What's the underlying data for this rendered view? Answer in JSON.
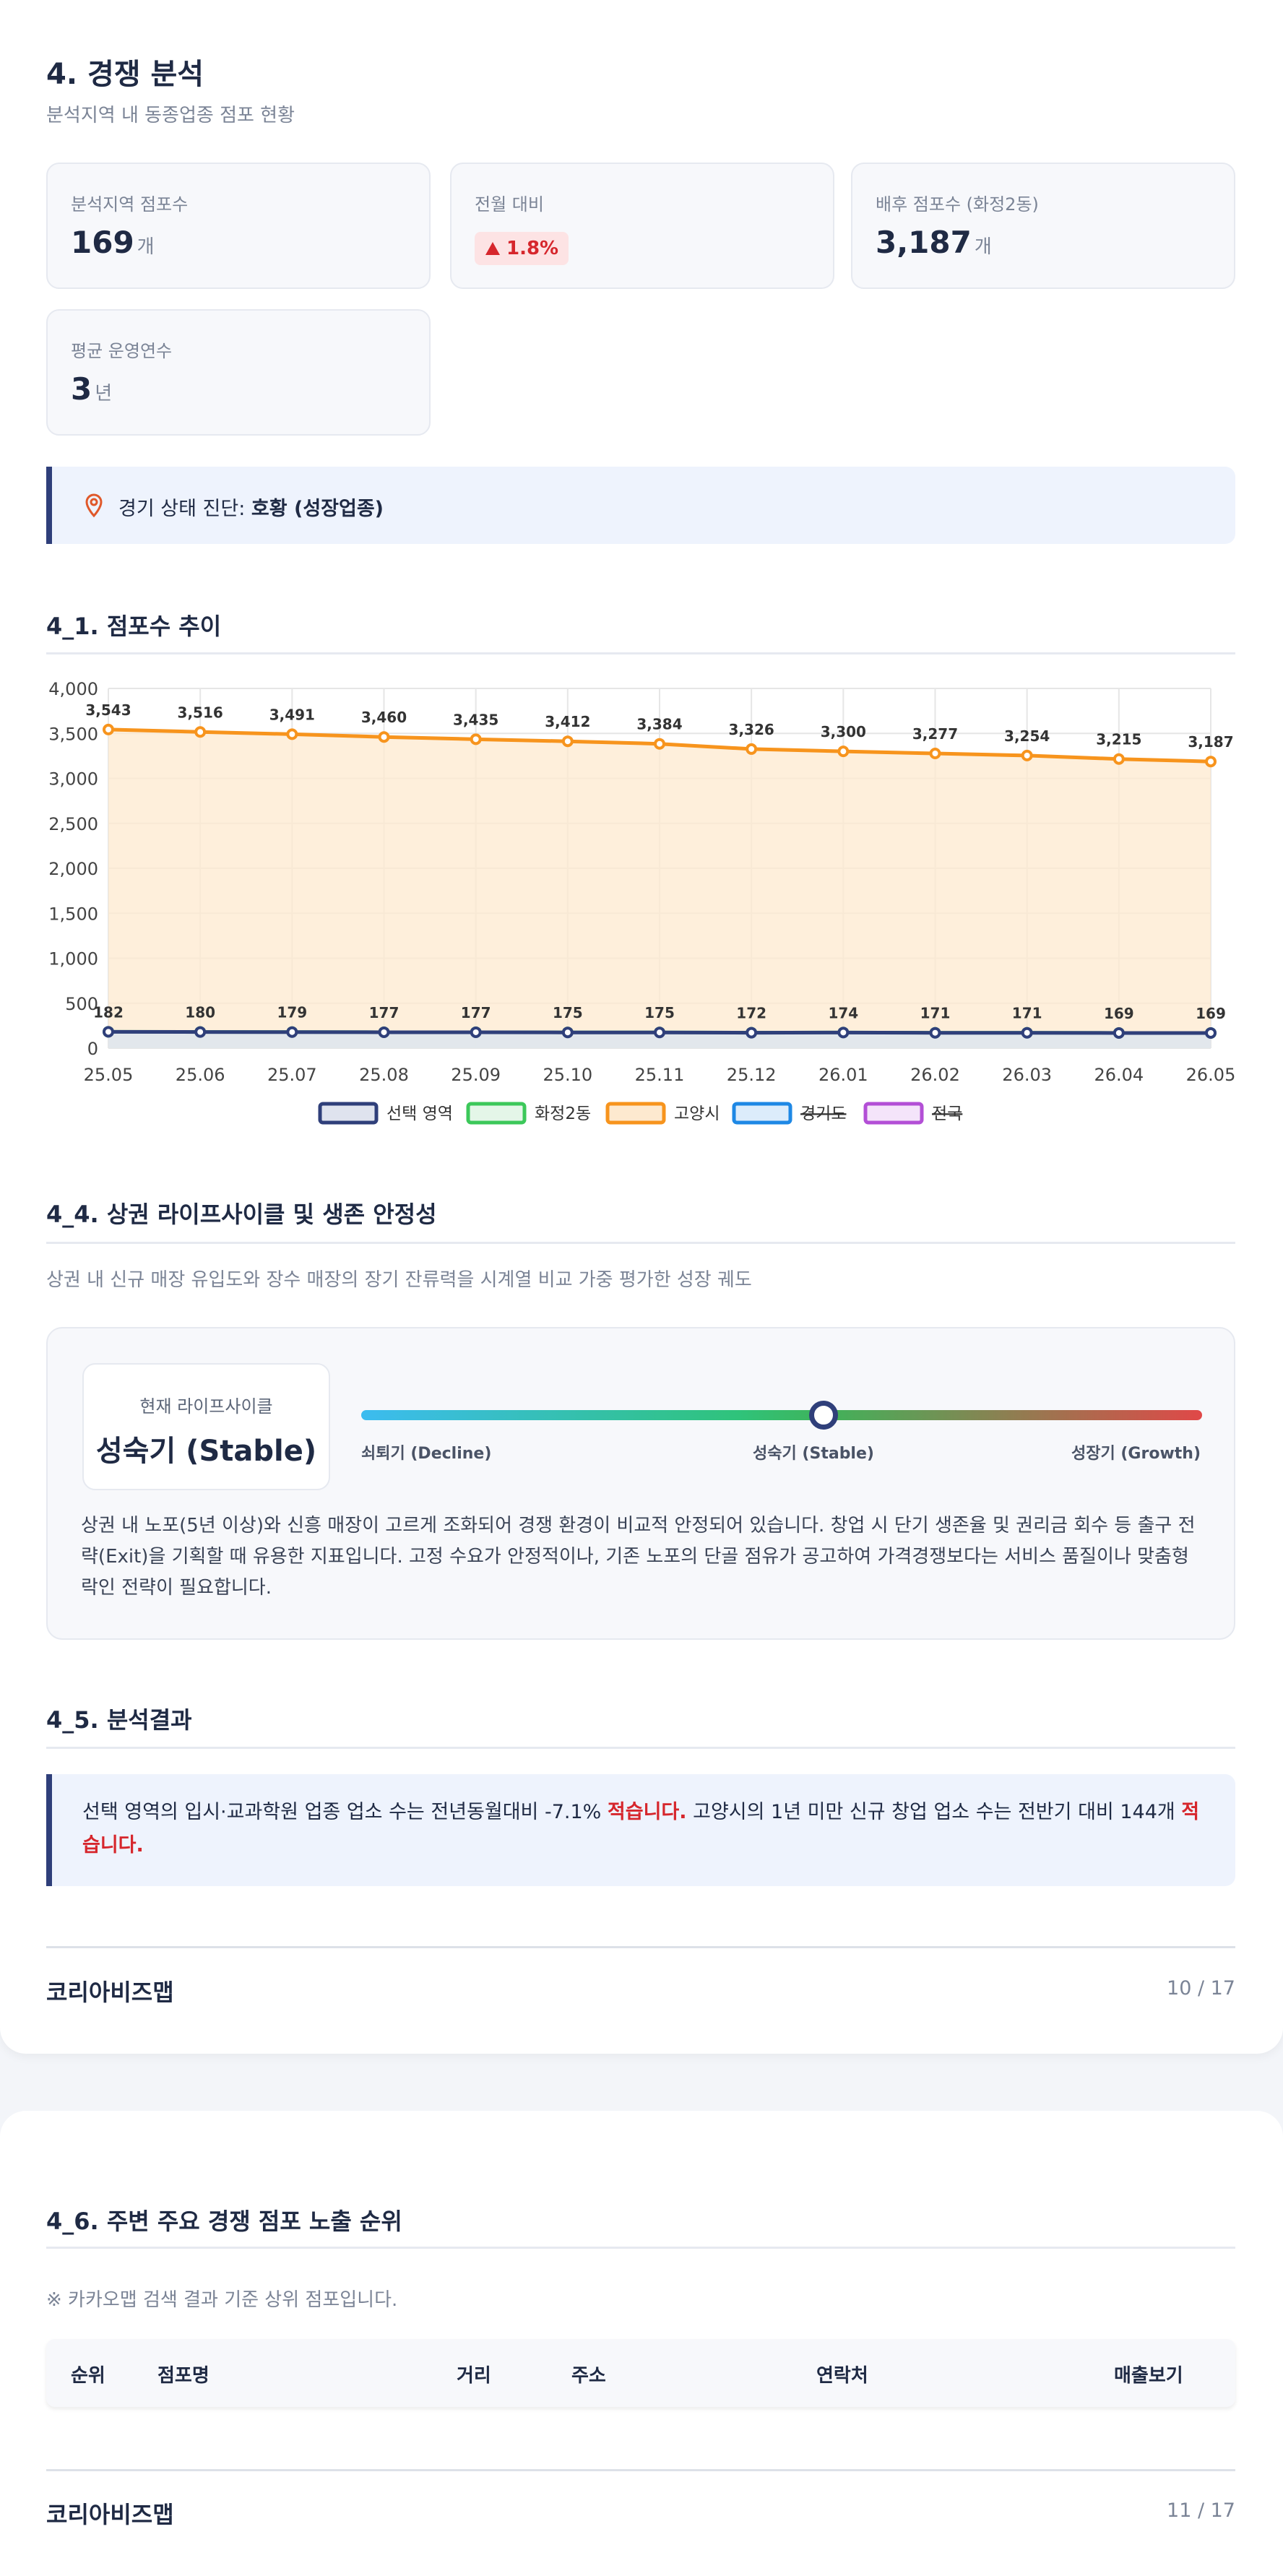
{
  "header": {
    "title": "4. 경쟁 분석",
    "subtitle": "분석지역 내 동종업종 점포 현황"
  },
  "stats": [
    {
      "label": "분석지역 점포수",
      "value": "169",
      "unit": "개"
    },
    {
      "label": "전월 대비",
      "value": "1.8%"
    },
    {
      "label": "배후 점포수 (화정2동)",
      "value": "3,187",
      "unit": "개"
    },
    {
      "label": "평균 운영연수",
      "value": "3",
      "unit": "년"
    }
  ],
  "diagnosis": {
    "label": "경기 상태 진단:",
    "value": "호황 (성장업종)"
  },
  "trend_heading": "4_1. 점포수 추이",
  "chart_data": {
    "type": "line",
    "categories": [
      "25.05",
      "25.06",
      "25.07",
      "25.08",
      "25.09",
      "25.10",
      "25.11",
      "25.12",
      "26.01",
      "26.02",
      "26.03",
      "26.04",
      "26.05"
    ],
    "series": [
      {
        "name": "선택 영역",
        "color": "#2f3f7a",
        "fill": "#dfe3ee",
        "values": [
          182,
          180,
          179,
          177,
          177,
          175,
          175,
          172,
          174,
          171,
          171,
          169,
          169
        ],
        "value_labels": [
          "182",
          "180",
          "179",
          "177",
          "177",
          "175",
          "175",
          "172",
          "174",
          "171",
          "171",
          "169",
          "169"
        ]
      },
      {
        "name": "화정2동",
        "color": "#3cc85a",
        "fill": "#e4f6e8",
        "values": [
          182,
          180,
          179,
          177,
          177,
          175,
          175,
          172,
          174,
          171,
          171,
          169,
          169
        ]
      },
      {
        "name": "고양시",
        "color": "#f7941d",
        "fill": "#fde9cf",
        "values": [
          3543,
          3516,
          3491,
          3460,
          3435,
          3412,
          3384,
          3326,
          3300,
          3277,
          3254,
          3215,
          3187
        ],
        "value_labels": [
          "3,543",
          "3,516",
          "3,491",
          "3,460",
          "3,435",
          "3,412",
          "3,384",
          "3,326",
          "3,300",
          "3,277",
          "3,254",
          "3,215",
          "3,187"
        ]
      },
      {
        "name": "경기도",
        "color": "#1e88e5",
        "fill": "#dcecfb",
        "hidden": true
      },
      {
        "name": "전국",
        "color": "#b34fd6",
        "fill": "#f4e4fa",
        "hidden": true
      }
    ],
    "ylim": [
      0,
      4000
    ],
    "yticks": [
      0,
      500,
      {
        "value": 1000,
        "label": "1,000"
      },
      {
        "value": 1500,
        "label": "1,500"
      },
      {
        "value": 2000,
        "label": "2,000"
      },
      {
        "value": 2500,
        "label": "2,500"
      },
      {
        "value": 3000,
        "label": "3,000"
      },
      {
        "value": 3500,
        "label": "3,500"
      },
      {
        "value": 4000,
        "label": "4,000"
      }
    ],
    "grid": true,
    "legend": "bottom"
  },
  "lifecycle": {
    "heading": "4_4. 상권 라이프사이클 및 생존 안정성",
    "description": "상권 내 신규 매장 유입도와 장수 매장의 장기 잔류력을 시계열 비교 가중 평가한 성장 궤도",
    "current_label": "현재 라이프사이클",
    "current_value": "성숙기 (Stable)",
    "stages": [
      "쇠퇴기 (Decline)",
      "성숙기 (Stable)",
      "성장기 (Growth)"
    ],
    "text": "상권 내 노포(5년 이상)와 신흥 매장이 고르게 조화되어 경쟁 환경이 비교적 안정되어 있습니다. 창업 시 단기 생존율 및 권리금 회수 등 출구 전략(Exit)을 기획할 때 유용한 지표입니다. 고정 수요가 안정적이나, 기존 노포의 단골 점유가 공고하여 가격경쟁보다는 서비스 품질이나 맞춤형 락인 전략이 필요합니다."
  },
  "result": {
    "heading": "4_5. 분석결과",
    "segments": [
      "선택 영역의 입시·교과학원 업종 업소 수는 전년동월대비 -7.1% ",
      "적습니다.",
      " 고양시의 1년 미만 신규 창업 업소 수는 전반기 대비 144개 ",
      "적습니다."
    ]
  },
  "footer1": {
    "brand": "코리아비즈맵",
    "page": "10 / 17"
  },
  "ranking": {
    "heading": "4_6. 주변 주요 경쟁 점포 노출 순위",
    "note": "※ 카카오맵 검색 결과 기준 상위 점포입니다.",
    "columns": [
      "순위",
      "점포명",
      "거리",
      "주소",
      "연락처",
      "매출보기"
    ]
  },
  "footer2": {
    "brand": "코리아비즈맵",
    "page": "11 / 17"
  }
}
